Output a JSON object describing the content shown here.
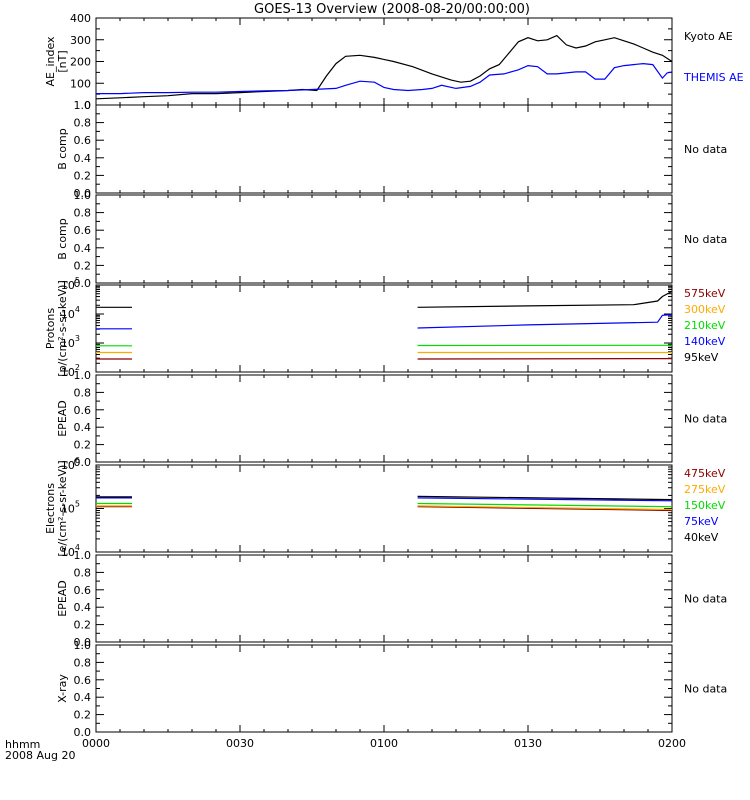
{
  "title": "GOES-13 Overview (2008-08-20/00:00:00)",
  "x_axis": {
    "ticks": [
      "0000",
      "0030",
      "0100",
      "0130",
      "0200"
    ],
    "label_line1": "hhmm",
    "label_line2": "2008 Aug 20"
  },
  "colors": {
    "black": "#000000",
    "blue": "#0000ff",
    "green": "#00dd00",
    "orange": "#ffaa00",
    "darkred": "#8b0000"
  },
  "chart_data": [
    {
      "type": "line",
      "panel": "ae",
      "ylabel_line1": "AE_index",
      "ylabel_line2": "[nT]",
      "ylim": [
        0,
        420
      ],
      "yticks": [
        "0",
        "100",
        "200",
        "300",
        "400"
      ],
      "x_range_minutes": [
        0,
        120
      ],
      "series": [
        {
          "name": "Kyoto AE",
          "color": "black",
          "x": [
            0,
            5,
            10,
            15,
            20,
            25,
            30,
            35,
            40,
            43,
            46,
            48,
            50,
            52,
            55,
            58,
            62,
            66,
            70,
            74,
            76,
            78,
            80,
            82,
            84,
            86,
            88,
            90,
            92,
            94,
            96,
            98,
            100,
            102,
            104,
            106,
            108,
            110,
            112,
            114,
            116,
            118,
            120
          ],
          "y": [
            30,
            35,
            40,
            45,
            55,
            55,
            60,
            65,
            70,
            75,
            70,
            140,
            200,
            235,
            240,
            230,
            210,
            185,
            150,
            120,
            110,
            115,
            140,
            175,
            195,
            250,
            305,
            325,
            310,
            315,
            335,
            290,
            275,
            285,
            305,
            315,
            325,
            310,
            295,
            275,
            255,
            240,
            210
          ]
        },
        {
          "name": "THEMIS AE",
          "color": "blue",
          "x": [
            0,
            5,
            10,
            15,
            20,
            25,
            30,
            35,
            40,
            45,
            50,
            52,
            55,
            58,
            60,
            62,
            65,
            68,
            70,
            72,
            75,
            78,
            80,
            82,
            85,
            88,
            90,
            92,
            94,
            96,
            98,
            100,
            102,
            104,
            106,
            108,
            110,
            112,
            114,
            116,
            118,
            119,
            120
          ],
          "y": [
            55,
            55,
            60,
            60,
            62,
            62,
            65,
            68,
            70,
            75,
            80,
            95,
            115,
            110,
            85,
            75,
            70,
            75,
            80,
            95,
            80,
            90,
            110,
            145,
            150,
            170,
            190,
            185,
            150,
            150,
            155,
            160,
            160,
            125,
            125,
            180,
            190,
            195,
            200,
            195,
            130,
            155,
            160
          ]
        }
      ]
    },
    {
      "type": "line",
      "panel": "bcomp1",
      "ylabel_line1": "B comp",
      "ylabel_line2": "",
      "ylim": [
        0,
        1
      ],
      "yticks": [
        "0.0",
        "0.2",
        "0.4",
        "0.6",
        "0.8",
        "1.0"
      ],
      "no_data": "No data",
      "series": []
    },
    {
      "type": "line",
      "panel": "bcomp2",
      "ylabel_line1": "B comp",
      "ylabel_line2": "",
      "ylim": [
        0,
        1
      ],
      "yticks": [
        "0.0",
        "0.2",
        "0.4",
        "0.6",
        "0.8",
        "1.0"
      ],
      "no_data": "No data",
      "series": []
    },
    {
      "type": "line",
      "panel": "protons",
      "ylabel_line1": "Protons",
      "ylabel_line2": "[p/(cm²-s-sr-keV)]",
      "log": true,
      "ylim": [
        100,
        100000
      ],
      "yticks_exp": [
        "2",
        "3",
        "4",
        "5"
      ],
      "x_range_minutes": [
        0,
        120
      ],
      "series": [
        {
          "name": "575keV",
          "color": "darkred",
          "segments": [
            {
              "x": [
                0,
                7.5
              ],
              "y": [
                280,
                280
              ]
            },
            {
              "x": [
                67,
                120
              ],
              "y": [
                280,
                290
              ]
            }
          ]
        },
        {
          "name": "300keV",
          "color": "orange",
          "segments": [
            {
              "x": [
                0,
                7.5
              ],
              "y": [
                470,
                470
              ]
            },
            {
              "x": [
                67,
                120
              ],
              "y": [
                470,
                470
              ]
            }
          ]
        },
        {
          "name": "210keV",
          "color": "green",
          "segments": [
            {
              "x": [
                0,
                7.5
              ],
              "y": [
                800,
                800
              ]
            },
            {
              "x": [
                67,
                120
              ],
              "y": [
                820,
                830
              ]
            }
          ]
        },
        {
          "name": "140keV",
          "color": "blue",
          "segments": [
            {
              "x": [
                0,
                7.5
              ],
              "y": [
                3100,
                3100
              ]
            },
            {
              "x": [
                67,
                90,
                117,
                118,
                120
              ],
              "y": [
                3300,
                4200,
                5200,
                9000,
                9500
              ]
            }
          ]
        },
        {
          "name": "95keV",
          "color": "black",
          "segments": [
            {
              "x": [
                0,
                7.5
              ],
              "y": [
                17000,
                17000
              ]
            },
            {
              "x": [
                67,
                90,
                112,
                117,
                118,
                120
              ],
              "y": [
                17000,
                19000,
                21000,
                28000,
                40000,
                60000
              ]
            }
          ]
        }
      ]
    },
    {
      "type": "line",
      "panel": "epead1",
      "ylabel_line1": "EPEAD",
      "ylabel_line2": "",
      "ylim": [
        0,
        1
      ],
      "yticks": [
        "0.0",
        "0.2",
        "0.4",
        "0.6",
        "0.8",
        "1.0"
      ],
      "no_data": "No data",
      "series": []
    },
    {
      "type": "line",
      "panel": "electrons",
      "ylabel_line1": "Electrons",
      "ylabel_line2": "[e/(cm²-s-sr-keV)]",
      "log": true,
      "ylim": [
        10000,
        1000000
      ],
      "yticks_exp": [
        "4",
        "5",
        "6"
      ],
      "x_range_minutes": [
        0,
        120
      ],
      "series": [
        {
          "name": "475keV",
          "color": "darkred",
          "segments": [
            {
              "x": [
                0,
                7.5
              ],
              "y": [
                110000,
                110000
              ]
            },
            {
              "x": [
                67,
                120
              ],
              "y": [
                110000,
                90000
              ]
            }
          ]
        },
        {
          "name": "275keV",
          "color": "orange",
          "segments": [
            {
              "x": [
                0,
                7.5
              ],
              "y": [
                115000,
                115000
              ]
            },
            {
              "x": [
                67,
                120
              ],
              "y": [
                115000,
                95000
              ]
            }
          ]
        },
        {
          "name": "150keV",
          "color": "green",
          "segments": [
            {
              "x": [
                0,
                7.5
              ],
              "y": [
                130000,
                130000
              ]
            },
            {
              "x": [
                67,
                120
              ],
              "y": [
                130000,
                110000
              ]
            }
          ]
        },
        {
          "name": "75keV",
          "color": "blue",
          "segments": [
            {
              "x": [
                0,
                7.5
              ],
              "y": [
                175000,
                175000
              ]
            },
            {
              "x": [
                67,
                120
              ],
              "y": [
                175000,
                150000
              ]
            }
          ]
        },
        {
          "name": "40keV",
          "color": "black",
          "segments": [
            {
              "x": [
                0,
                7.5
              ],
              "y": [
                185000,
                185000
              ]
            },
            {
              "x": [
                67,
                120
              ],
              "y": [
                190000,
                160000
              ]
            }
          ]
        }
      ]
    },
    {
      "type": "line",
      "panel": "epead2",
      "ylabel_line1": "EPEAD",
      "ylabel_line2": "",
      "ylim": [
        0,
        1
      ],
      "yticks": [
        "0.0",
        "0.2",
        "0.4",
        "0.6",
        "0.8",
        "1.0"
      ],
      "no_data": "No data",
      "series": []
    },
    {
      "type": "line",
      "panel": "xray",
      "ylabel_line1": "X-ray",
      "ylabel_line2": "",
      "ylim": [
        0,
        1
      ],
      "yticks": [
        "0.0",
        "0.2",
        "0.4",
        "0.6",
        "0.8",
        "1.0"
      ],
      "no_data": "No data",
      "series": []
    }
  ]
}
